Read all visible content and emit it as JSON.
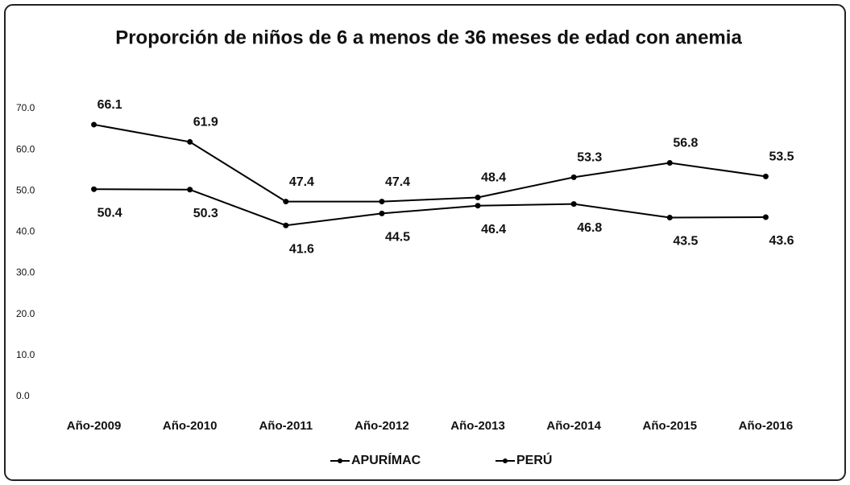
{
  "chart_data": {
    "type": "line",
    "title": "Proporción de niños de 6 a menos de 36 meses de edad con anemia",
    "categories": [
      "Año-2009",
      "Año-2010",
      "Año-2011",
      "Año-2012",
      "Año-2013",
      "Año-2014",
      "Año-2015",
      "Año-2016"
    ],
    "series": [
      {
        "name": "APURÍMAC",
        "color": "#000000",
        "values": [
          66.1,
          61.9,
          47.4,
          47.4,
          48.4,
          53.3,
          56.8,
          53.5
        ]
      },
      {
        "name": "PERÚ",
        "color": "#000000",
        "values": [
          50.4,
          50.3,
          41.6,
          44.5,
          46.4,
          46.8,
          43.5,
          43.6
        ]
      }
    ],
    "ylim": [
      0,
      70
    ],
    "yticks": [
      {
        "value": 0,
        "label": "0.0"
      },
      {
        "value": 10,
        "label": "10.0"
      },
      {
        "value": 20,
        "label": "20.0"
      },
      {
        "value": 30,
        "label": "30.0"
      },
      {
        "value": 40,
        "label": "40.0"
      },
      {
        "value": 50,
        "label": "50.0"
      },
      {
        "value": 60,
        "label": "60.0"
      },
      {
        "value": 70,
        "label": "70.0"
      }
    ],
    "legend": "bottom"
  }
}
